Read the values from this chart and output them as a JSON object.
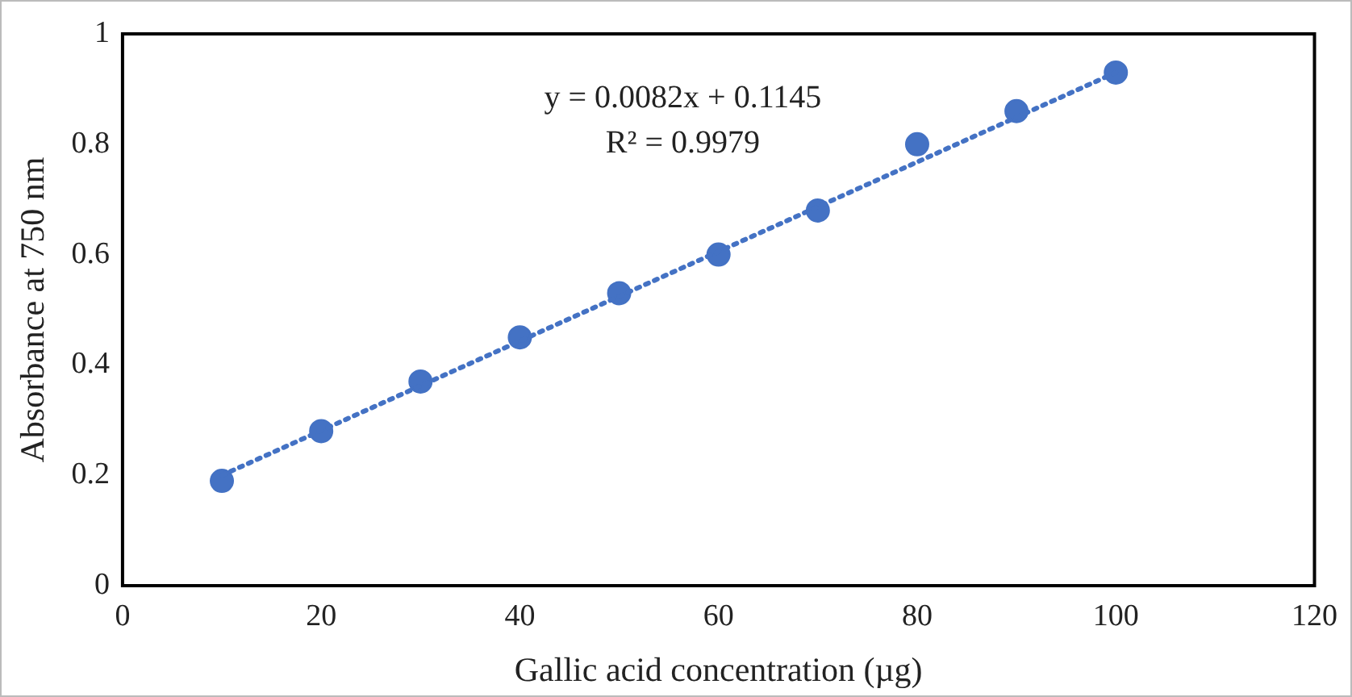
{
  "chart_data": {
    "type": "scatter",
    "xlabel": "Gallic acid concentration (µg)",
    "ylabel": "Absorbance at 750 nm",
    "annotations": [
      "y = 0.0082x + 0.1145",
      "R² = 0.9979"
    ],
    "x": [
      10,
      20,
      30,
      40,
      50,
      60,
      70,
      80,
      90,
      100
    ],
    "series": [
      {
        "type": "scatter",
        "color": "#4472c4",
        "marker": "circle",
        "values": [
          0.19,
          0.28,
          0.37,
          0.45,
          0.53,
          0.6,
          0.68,
          0.8,
          0.86,
          0.93
        ]
      },
      {
        "type": "line",
        "color": "#4472c4",
        "line_style": "dotted",
        "x": [
          10,
          100
        ],
        "values": [
          0.2,
          0.93
        ]
      }
    ],
    "xlim": [
      0,
      120
    ],
    "xticks": [
      0,
      20,
      40,
      60,
      80,
      100,
      120
    ],
    "ylim": [
      0,
      1
    ],
    "yticks": [
      0,
      0.2,
      0.4,
      0.6,
      0.8,
      1
    ]
  }
}
